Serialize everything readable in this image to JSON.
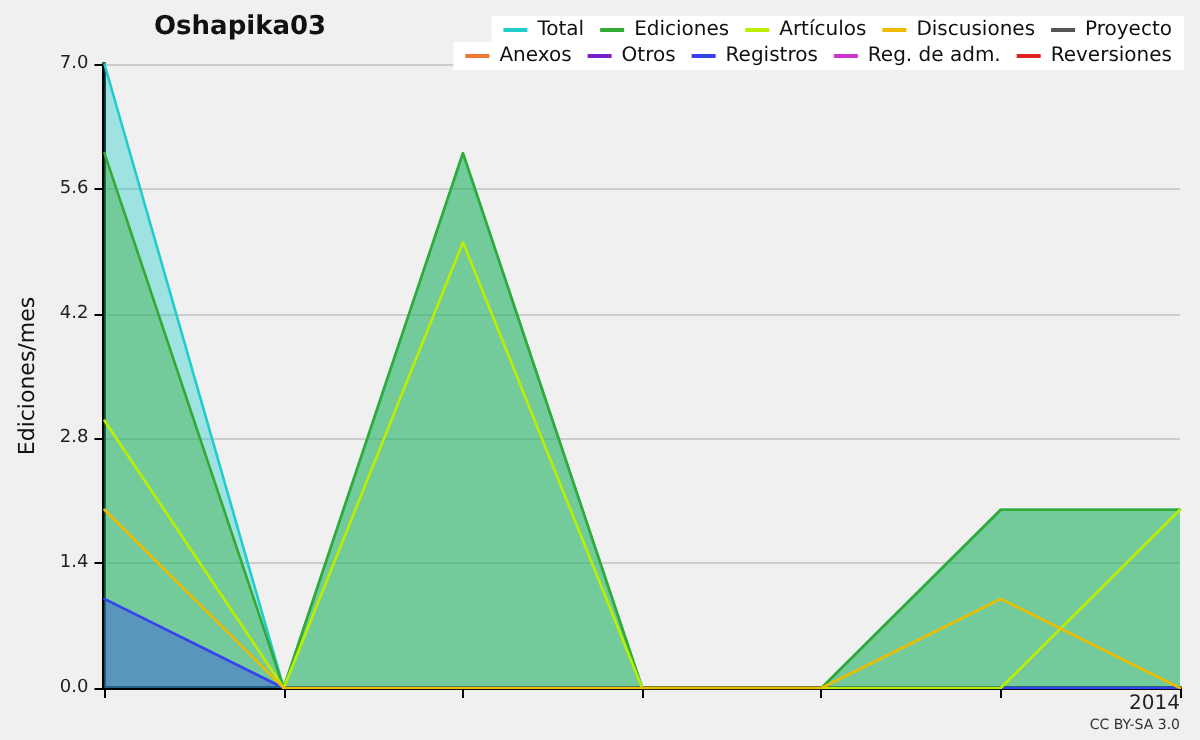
{
  "chart_data": {
    "type": "line",
    "title": "Oshapika03",
    "ylabel": "Ediciones/mes",
    "annotations": [
      "CC BY-SA 3.0"
    ],
    "categories": [
      null,
      null,
      null,
      null,
      null,
      null,
      "2014"
    ],
    "series": [
      {
        "name": "Total",
        "type": "area",
        "color": "#22cccc",
        "values": [
          7,
          0,
          6,
          0,
          0,
          2,
          2
        ]
      },
      {
        "name": "Ediciones",
        "type": "area",
        "color": "#33aa33",
        "values": [
          6,
          0,
          6,
          0,
          0,
          2,
          2
        ]
      },
      {
        "name": "Artículos",
        "type": "line",
        "color": "#bbee00",
        "values": [
          3,
          0,
          5,
          0,
          0,
          0,
          2
        ]
      },
      {
        "name": "Discusiones",
        "type": "line",
        "color": "#eebb00",
        "values": [
          2,
          0,
          0,
          0,
          0,
          1,
          0
        ]
      },
      {
        "name": "Proyecto",
        "type": "line",
        "color": "#555555",
        "values": [
          null,
          null,
          null,
          null,
          null,
          null,
          null
        ]
      },
      {
        "name": "Anexos",
        "type": "line",
        "color": "#ee7733",
        "values": [
          null,
          null,
          null,
          null,
          null,
          null,
          null
        ]
      },
      {
        "name": "Otros",
        "type": "line",
        "color": "#7722cc",
        "values": [
          null,
          null,
          null,
          null,
          null,
          null,
          null
        ]
      },
      {
        "name": "Registros",
        "type": "area",
        "color": "#3344ee",
        "values": [
          1,
          0,
          0,
          0,
          0,
          0,
          0
        ]
      },
      {
        "name": "Reg. de adm.",
        "type": "line",
        "color": "#cc33cc",
        "values": [
          null,
          null,
          null,
          null,
          null,
          null,
          null
        ]
      },
      {
        "name": "Reversiones",
        "type": "line",
        "color": "#dd2222",
        "values": [
          null,
          null,
          null,
          null,
          null,
          null,
          null
        ]
      }
    ],
    "ylim": [
      0,
      7
    ],
    "yticks": [
      {
        "value": 0,
        "label": "0.0"
      },
      1.4,
      2.8,
      4.2,
      5.6,
      {
        "value": 7,
        "label": "7.0"
      }
    ],
    "grid": "y",
    "legend": "top right",
    "marker": "none",
    "line_style": "solid"
  }
}
